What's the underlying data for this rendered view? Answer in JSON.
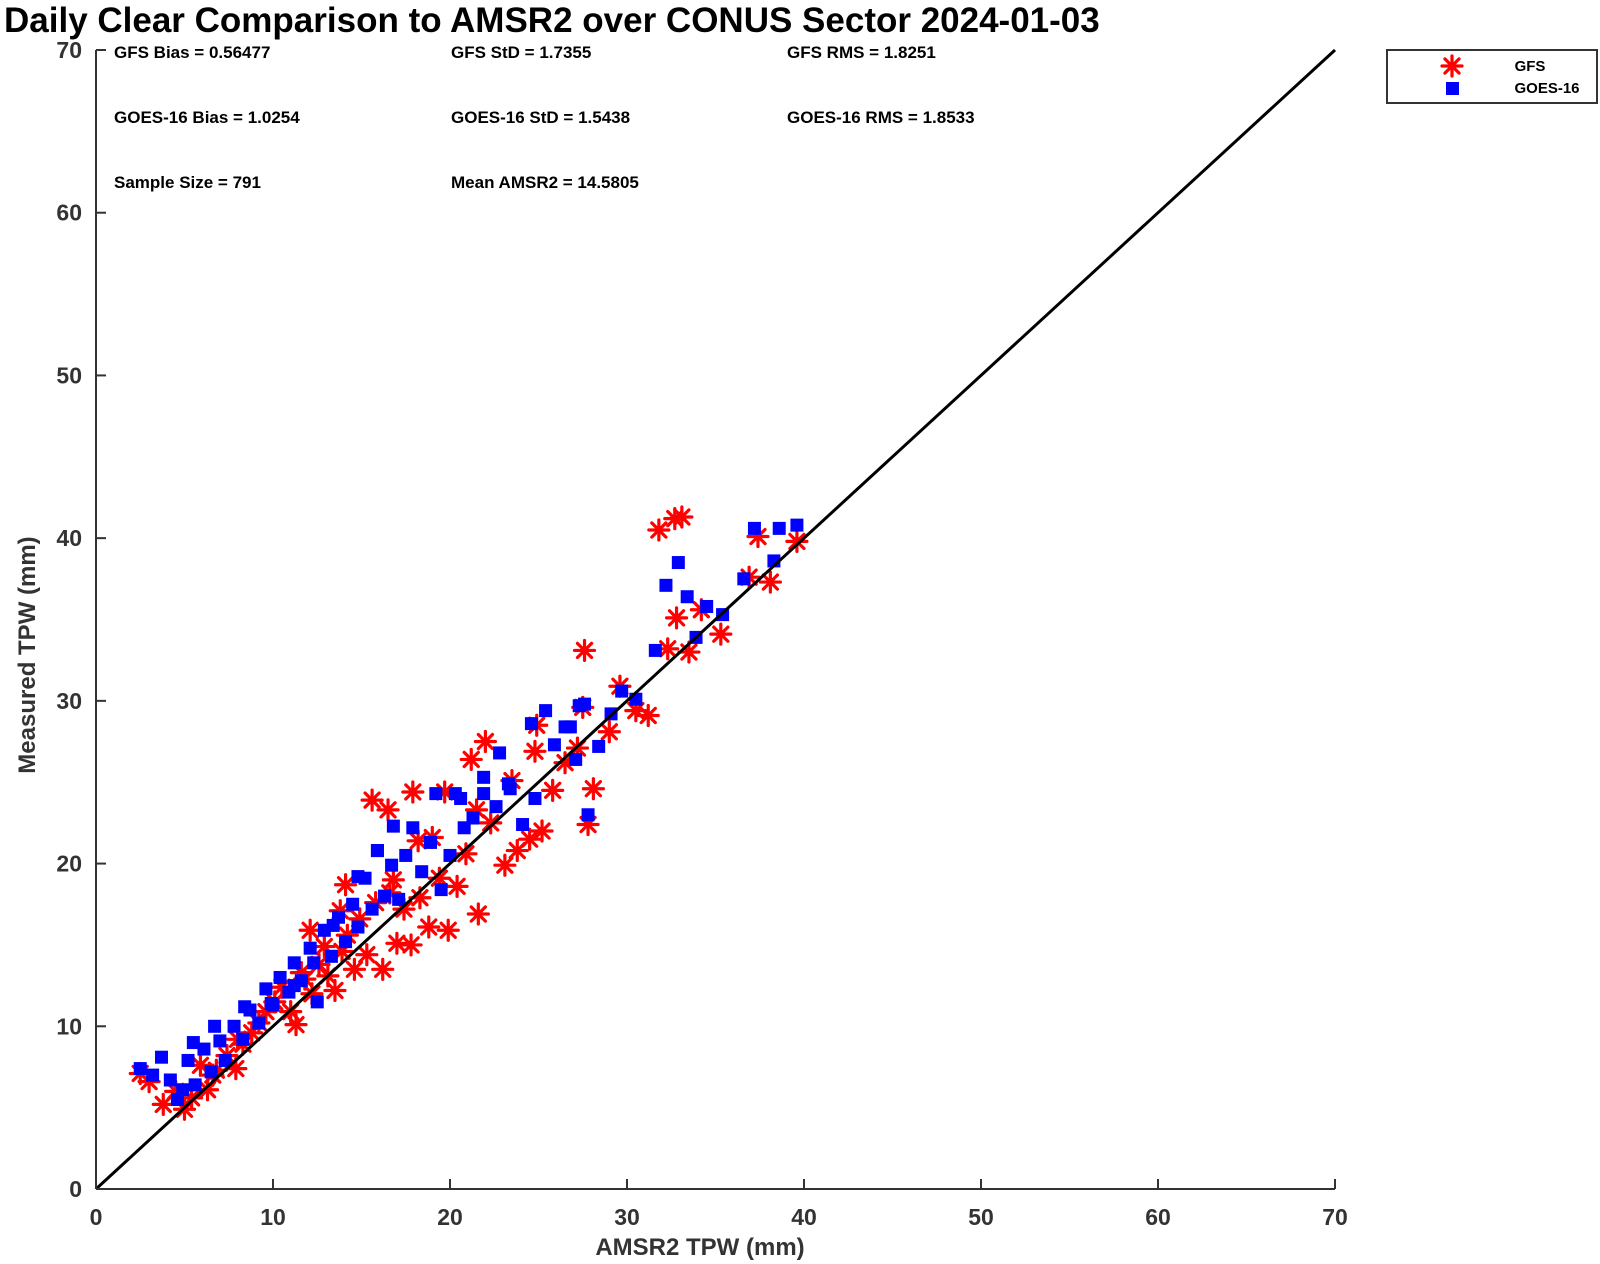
{
  "chart_data": {
    "type": "scatter",
    "title": "Daily Clear Comparison to AMSR2 over CONUS Sector 2024-01-03",
    "xlabel": "AMSR2 TPW (mm)",
    "ylabel": "Measured TPW (mm)",
    "xlim": [
      0,
      70
    ],
    "ylim": [
      0,
      70
    ],
    "xticks": [
      "0",
      "10",
      "20",
      "30",
      "40",
      "50",
      "60",
      "70"
    ],
    "yticks": [
      "0",
      "10",
      "20",
      "30",
      "40",
      "50",
      "60",
      "70"
    ],
    "grid": false,
    "legend_position": "outside-top-right",
    "reference_line": {
      "type": "1:1",
      "x": [
        0,
        70
      ],
      "y": [
        0,
        70
      ],
      "color": "#000000"
    },
    "stats": [
      [
        "GFS Bias = 0.56477",
        "GFS StD = 1.7355",
        "GFS RMS = 1.8251"
      ],
      [
        "GOES-16 Bias = 1.0254",
        "GOES-16 StD = 1.5438",
        "GOES-16 RMS = 1.8533"
      ],
      [
        "Sample Size = 791",
        "Mean AMSR2 = 14.5805"
      ]
    ],
    "series": [
      {
        "name": "GFS",
        "marker": "asterisk",
        "color": "#ff0000",
        "points": [
          [
            2.5,
            7.1
          ],
          [
            3.0,
            6.6
          ],
          [
            3.8,
            5.2
          ],
          [
            4.5,
            6.0
          ],
          [
            5.0,
            4.9
          ],
          [
            5.4,
            5.6
          ],
          [
            5.9,
            7.6
          ],
          [
            6.3,
            6.1
          ],
          [
            6.8,
            7.3
          ],
          [
            7.4,
            8.2
          ],
          [
            7.9,
            7.4
          ],
          [
            8.3,
            8.9
          ],
          [
            8.8,
            9.6
          ],
          [
            9.2,
            10.2
          ],
          [
            9.6,
            10.9
          ],
          [
            10.1,
            11.5
          ],
          [
            10.5,
            12.4
          ],
          [
            11.0,
            10.9
          ],
          [
            11.3,
            10.1
          ],
          [
            11.8,
            12.9
          ],
          [
            12.2,
            12.0
          ],
          [
            12.6,
            13.8
          ],
          [
            13.1,
            13.1
          ],
          [
            13.5,
            12.2
          ],
          [
            13.9,
            14.6
          ],
          [
            14.2,
            15.6
          ],
          [
            14.6,
            13.5
          ],
          [
            14.9,
            16.6
          ],
          [
            15.3,
            14.4
          ],
          [
            15.8,
            17.6
          ],
          [
            16.2,
            13.5
          ],
          [
            16.6,
            18.2
          ],
          [
            17.0,
            15.1
          ],
          [
            17.4,
            17.2
          ],
          [
            17.8,
            15.0
          ],
          [
            18.3,
            17.9
          ],
          [
            18.8,
            16.1
          ],
          [
            19.4,
            19.1
          ],
          [
            19.9,
            15.9
          ],
          [
            20.4,
            18.6
          ],
          [
            20.9,
            20.6
          ],
          [
            21.6,
            16.9
          ],
          [
            22.3,
            22.5
          ],
          [
            23.1,
            19.9
          ],
          [
            23.8,
            20.8
          ],
          [
            24.5,
            21.5
          ],
          [
            25.2,
            22.0
          ],
          [
            25.8,
            24.5
          ],
          [
            26.5,
            26.2
          ],
          [
            27.2,
            27.1
          ],
          [
            27.8,
            22.4
          ],
          [
            28.1,
            24.6
          ],
          [
            29.0,
            28.1
          ],
          [
            29.6,
            30.9
          ],
          [
            30.5,
            29.4
          ],
          [
            31.2,
            29.1
          ],
          [
            32.3,
            33.2
          ],
          [
            32.8,
            35.1
          ],
          [
            33.5,
            33.0
          ],
          [
            34.2,
            35.6
          ],
          [
            35.3,
            34.1
          ],
          [
            36.9,
            37.6
          ],
          [
            37.4,
            40.1
          ],
          [
            38.1,
            37.3
          ],
          [
            39.6,
            39.8
          ],
          [
            31.8,
            40.5
          ],
          [
            32.7,
            41.2
          ],
          [
            33.1,
            41.3
          ],
          [
            27.6,
            33.1
          ],
          [
            27.5,
            29.6
          ],
          [
            24.9,
            28.5
          ],
          [
            22.0,
            27.5
          ],
          [
            21.2,
            26.4
          ],
          [
            17.9,
            24.4
          ],
          [
            16.5,
            23.3
          ],
          [
            15.6,
            23.9
          ],
          [
            14.1,
            18.7
          ],
          [
            12.1,
            15.9
          ],
          [
            18.2,
            21.4
          ],
          [
            19.7,
            24.4
          ],
          [
            23.5,
            25.1
          ],
          [
            24.8,
            26.9
          ],
          [
            12.9,
            14.9
          ],
          [
            16.8,
            19.0
          ],
          [
            19.0,
            21.6
          ],
          [
            21.5,
            23.3
          ],
          [
            8.0,
            9.2
          ],
          [
            6.6,
            7.0
          ],
          [
            13.8,
            17.1
          ],
          [
            11.6,
            13.3
          ]
        ]
      },
      {
        "name": "GOES-16",
        "marker": "square",
        "color": "#0000ff",
        "points": [
          [
            2.5,
            7.4
          ],
          [
            3.2,
            7.0
          ],
          [
            3.7,
            8.1
          ],
          [
            4.2,
            6.7
          ],
          [
            4.6,
            5.5
          ],
          [
            5.2,
            7.9
          ],
          [
            5.6,
            6.4
          ],
          [
            6.1,
            8.6
          ],
          [
            6.5,
            7.2
          ],
          [
            7.0,
            9.1
          ],
          [
            7.3,
            7.9
          ],
          [
            7.8,
            10.0
          ],
          [
            8.3,
            9.2
          ],
          [
            8.7,
            11.0
          ],
          [
            9.2,
            10.2
          ],
          [
            9.6,
            12.3
          ],
          [
            10.0,
            11.3
          ],
          [
            10.4,
            13.0
          ],
          [
            10.9,
            12.1
          ],
          [
            11.2,
            13.9
          ],
          [
            11.6,
            12.8
          ],
          [
            12.1,
            14.8
          ],
          [
            12.5,
            11.5
          ],
          [
            12.9,
            15.9
          ],
          [
            13.3,
            14.3
          ],
          [
            13.7,
            16.7
          ],
          [
            14.1,
            15.2
          ],
          [
            14.5,
            17.5
          ],
          [
            14.8,
            16.1
          ],
          [
            15.2,
            19.1
          ],
          [
            15.6,
            17.2
          ],
          [
            15.9,
            20.8
          ],
          [
            16.3,
            18.0
          ],
          [
            16.7,
            19.9
          ],
          [
            17.1,
            17.8
          ],
          [
            17.5,
            20.5
          ],
          [
            17.9,
            22.2
          ],
          [
            18.4,
            19.5
          ],
          [
            18.9,
            21.3
          ],
          [
            19.5,
            18.4
          ],
          [
            20.0,
            20.5
          ],
          [
            20.6,
            24.0
          ],
          [
            21.3,
            22.8
          ],
          [
            21.9,
            25.3
          ],
          [
            22.6,
            23.5
          ],
          [
            23.4,
            24.6
          ],
          [
            24.1,
            22.4
          ],
          [
            24.8,
            24.0
          ],
          [
            25.4,
            29.4
          ],
          [
            25.9,
            27.3
          ],
          [
            26.5,
            28.4
          ],
          [
            27.1,
            26.4
          ],
          [
            27.8,
            23.0
          ],
          [
            28.4,
            27.2
          ],
          [
            29.1,
            29.2
          ],
          [
            29.7,
            30.6
          ],
          [
            30.5,
            30.1
          ],
          [
            31.6,
            33.1
          ],
          [
            32.2,
            37.1
          ],
          [
            32.9,
            38.5
          ],
          [
            33.4,
            36.4
          ],
          [
            33.9,
            33.9
          ],
          [
            34.5,
            35.8
          ],
          [
            35.4,
            35.3
          ],
          [
            36.6,
            37.5
          ],
          [
            37.2,
            40.6
          ],
          [
            38.3,
            38.6
          ],
          [
            38.6,
            40.6
          ],
          [
            39.6,
            40.8
          ],
          [
            27.6,
            29.8
          ],
          [
            27.3,
            29.7
          ],
          [
            26.8,
            28.4
          ],
          [
            20.3,
            24.3
          ],
          [
            21.9,
            24.3
          ],
          [
            23.3,
            24.9
          ],
          [
            19.2,
            24.3
          ],
          [
            15.9,
            20.8
          ],
          [
            16.8,
            22.3
          ],
          [
            14.8,
            19.2
          ],
          [
            13.4,
            16.2
          ],
          [
            12.3,
            13.9
          ],
          [
            11.2,
            12.5
          ],
          [
            9.9,
            11.4
          ],
          [
            8.4,
            11.2
          ],
          [
            6.7,
            10.0
          ],
          [
            5.5,
            9.0
          ],
          [
            4.9,
            6.1
          ],
          [
            24.6,
            28.6
          ],
          [
            22.8,
            26.8
          ],
          [
            20.8,
            22.2
          ]
        ]
      }
    ]
  }
}
